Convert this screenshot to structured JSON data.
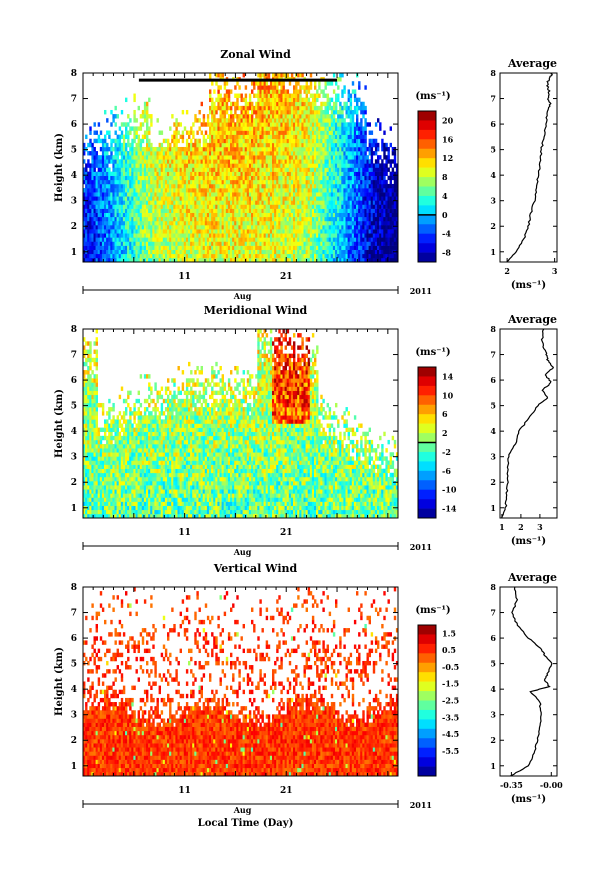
{
  "chart_data": [
    {
      "type": "heatmap",
      "title": "Zonal Wind",
      "ylabel": "Height (km)",
      "xlabel": "",
      "y_ticks": [
        "1",
        "2",
        "3",
        "4",
        "5",
        "6",
        "7",
        "8"
      ],
      "ylim": [
        0.6,
        8
      ],
      "x_tick_labels": [
        "11",
        "21"
      ],
      "month_label": "Aug",
      "year_label": "2011",
      "colorbar": {
        "unit": "(ms⁻¹)",
        "range": [
          -10,
          22
        ],
        "tick_labels": [
          "20",
          "16",
          "12",
          "8",
          "4",
          "0",
          "-4",
          "-8"
        ],
        "tick_values": [
          20,
          16,
          12,
          8,
          4,
          0,
          -4,
          -8
        ],
        "zero_line": 0
      },
      "average_profile": {
        "title": "Average",
        "xlabel": "(ms⁻¹)",
        "x_tick_labels": [
          "2",
          "3"
        ],
        "xlim": [
          1.85,
          3.05
        ],
        "x_ticks": [
          2,
          3
        ],
        "height": [
          0.6,
          1.0,
          1.5,
          2.0,
          2.5,
          3.0,
          3.5,
          4.0,
          4.5,
          5.0,
          5.5,
          6.0,
          6.5,
          6.8,
          7.0,
          7.3,
          7.6,
          7.8,
          8.0
        ],
        "value": [
          2.0,
          2.2,
          2.35,
          2.45,
          2.5,
          2.58,
          2.62,
          2.65,
          2.7,
          2.72,
          2.78,
          2.82,
          2.84,
          2.92,
          2.86,
          2.88,
          2.84,
          2.9,
          2.95
        ]
      }
    },
    {
      "type": "heatmap",
      "title": "Meridional Wind",
      "ylabel": "Height (km)",
      "xlabel": "",
      "y_ticks": [
        "1",
        "2",
        "3",
        "4",
        "5",
        "6",
        "7",
        "8"
      ],
      "ylim": [
        0.6,
        8
      ],
      "x_tick_labels": [
        "11",
        "21"
      ],
      "month_label": "Aug",
      "year_label": "2011",
      "colorbar": {
        "unit": "(ms⁻¹)",
        "range": [
          -16,
          16
        ],
        "tick_labels": [
          "14",
          "10",
          "6",
          "2",
          "-2",
          "-6",
          "-10",
          "-14"
        ],
        "tick_values": [
          14,
          10,
          6,
          2,
          -2,
          -6,
          -10,
          -14
        ],
        "zero_line": 0
      },
      "average_profile": {
        "title": "Average",
        "xlabel": "(ms⁻¹)",
        "x_tick_labels": [
          "1",
          "2",
          "3"
        ],
        "xlim": [
          0.9,
          3.9
        ],
        "x_ticks": [
          1,
          2,
          3
        ],
        "height": [
          0.6,
          1.0,
          1.5,
          2.0,
          2.5,
          3.0,
          3.5,
          4.0,
          4.5,
          5.0,
          5.3,
          5.6,
          5.9,
          6.2,
          6.5,
          6.8,
          7.1,
          7.5,
          8.0
        ],
        "value": [
          1.0,
          1.2,
          1.25,
          1.3,
          1.3,
          1.35,
          1.7,
          1.9,
          2.4,
          2.9,
          3.4,
          3.1,
          3.6,
          3.3,
          3.7,
          3.4,
          3.3,
          3.1,
          3.2
        ]
      }
    },
    {
      "type": "heatmap",
      "title": "Vertical Wind",
      "ylabel": "Height (km)",
      "xlabel": "Local Time (Day)",
      "y_ticks": [
        "1",
        "2",
        "3",
        "4",
        "5",
        "6",
        "7",
        "8"
      ],
      "ylim": [
        0.6,
        8
      ],
      "x_tick_labels": [
        "11",
        "21"
      ],
      "month_label": "Aug",
      "year_label": "2011",
      "colorbar": {
        "unit": "(ms⁻¹)",
        "range": [
          -7,
          2
        ],
        "tick_labels": [
          "1.5",
          "0.5",
          "-0.5",
          "-1.5",
          "-2.5",
          "-3.5",
          "-4.5",
          "-5.5"
        ],
        "tick_values": [
          1.5,
          0.5,
          -0.5,
          -1.5,
          -2.5,
          -3.5,
          -4.5,
          -5.5
        ]
      },
      "average_profile": {
        "title": "Average",
        "xlabel": "(ms⁻¹)",
        "x_tick_labels": [
          "-0.35",
          "-0.00"
        ],
        "xlim": [
          -0.45,
          0.05
        ],
        "x_ticks": [
          -0.35,
          0.0
        ],
        "height": [
          0.6,
          1.0,
          1.5,
          2.0,
          2.5,
          3.0,
          3.5,
          3.9,
          4.1,
          4.4,
          4.7,
          5.0,
          5.3,
          5.6,
          6.0,
          6.5,
          7.0,
          7.5,
          8.0
        ],
        "value": [
          -0.36,
          -0.2,
          -0.15,
          -0.12,
          -0.1,
          -0.09,
          -0.1,
          -0.18,
          -0.02,
          -0.06,
          -0.02,
          0.0,
          -0.05,
          -0.1,
          -0.2,
          -0.3,
          -0.34,
          -0.3,
          -0.32
        ]
      }
    }
  ]
}
